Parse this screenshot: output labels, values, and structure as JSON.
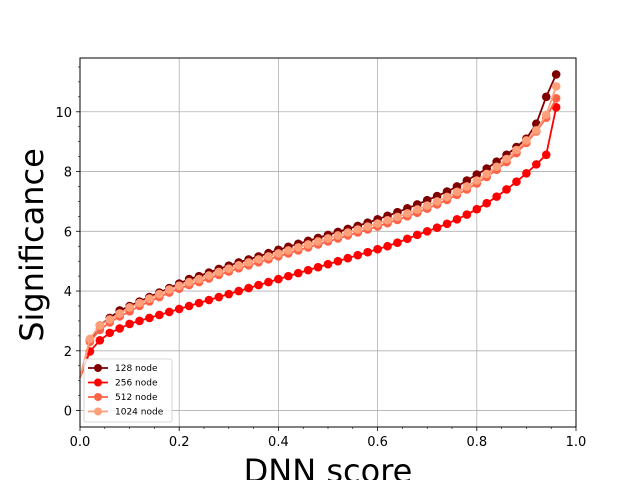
{
  "chart_data": {
    "type": "line",
    "title": "",
    "xlabel": "DNN score",
    "ylabel": "Significance",
    "xlim": [
      0.0,
      1.0
    ],
    "ylim": [
      -0.55,
      11.8
    ],
    "xticks": [
      "0.0",
      "0.2",
      "0.4",
      "0.6",
      "0.8",
      "1.0"
    ],
    "yticks": [
      "0",
      "2",
      "4",
      "6",
      "8",
      "10"
    ],
    "grid": true,
    "legend_position": "lower-left",
    "x": [
      0.0,
      0.02,
      0.04,
      0.06,
      0.08,
      0.1,
      0.12,
      0.14,
      0.16,
      0.18,
      0.2,
      0.22,
      0.24,
      0.26,
      0.28,
      0.3,
      0.32,
      0.34,
      0.36,
      0.38,
      0.4,
      0.42,
      0.44,
      0.46,
      0.48,
      0.5,
      0.52,
      0.54,
      0.56,
      0.58,
      0.6,
      0.62,
      0.64,
      0.66,
      0.68,
      0.7,
      0.72,
      0.74,
      0.76,
      0.78,
      0.8,
      0.82,
      0.84,
      0.86,
      0.88,
      0.9,
      0.92,
      0.94,
      0.96
    ],
    "series": [
      {
        "name": "128 node",
        "color": "#800000",
        "values": [
          1.1,
          2.35,
          2.85,
          3.1,
          3.35,
          3.5,
          3.65,
          3.8,
          3.95,
          4.1,
          4.25,
          4.4,
          4.5,
          4.62,
          4.74,
          4.85,
          4.96,
          5.06,
          5.16,
          5.27,
          5.38,
          5.48,
          5.58,
          5.68,
          5.78,
          5.88,
          5.98,
          6.08,
          6.18,
          6.29,
          6.4,
          6.52,
          6.64,
          6.77,
          6.9,
          7.04,
          7.18,
          7.33,
          7.5,
          7.7,
          7.9,
          8.1,
          8.33,
          8.56,
          8.82,
          9.1,
          9.6,
          10.5,
          11.25
        ]
      },
      {
        "name": "256 node",
        "color": "#ff0000",
        "values": [
          1.1,
          1.98,
          2.35,
          2.6,
          2.75,
          2.9,
          3.0,
          3.1,
          3.2,
          3.3,
          3.4,
          3.5,
          3.6,
          3.7,
          3.8,
          3.9,
          4.0,
          4.1,
          4.2,
          4.3,
          4.4,
          4.5,
          4.6,
          4.7,
          4.8,
          4.9,
          5.0,
          5.1,
          5.2,
          5.3,
          5.4,
          5.5,
          5.62,
          5.75,
          5.88,
          6.0,
          6.12,
          6.25,
          6.4,
          6.56,
          6.74,
          6.94,
          7.16,
          7.4,
          7.66,
          7.94,
          8.24,
          8.56,
          10.15
        ]
      },
      {
        "name": "512 node",
        "color": "#ff6347",
        "values": [
          1.1,
          2.3,
          2.7,
          2.95,
          3.15,
          3.32,
          3.5,
          3.65,
          3.8,
          3.95,
          4.08,
          4.2,
          4.3,
          4.42,
          4.54,
          4.65,
          4.76,
          4.86,
          4.96,
          5.06,
          5.16,
          5.26,
          5.36,
          5.46,
          5.56,
          5.66,
          5.76,
          5.86,
          5.96,
          6.06,
          6.16,
          6.27,
          6.38,
          6.5,
          6.62,
          6.76,
          6.9,
          7.05,
          7.22,
          7.4,
          7.6,
          7.82,
          8.06,
          8.32,
          8.62,
          8.96,
          9.34,
          9.8,
          10.45
        ]
      },
      {
        "name": "1024 node",
        "color": "#ffa07a",
        "values": [
          1.1,
          2.4,
          2.85,
          3.05,
          3.25,
          3.45,
          3.6,
          3.75,
          3.9,
          4.05,
          4.18,
          4.3,
          4.4,
          4.52,
          4.64,
          4.75,
          4.86,
          4.96,
          5.06,
          5.16,
          5.26,
          5.36,
          5.46,
          5.56,
          5.66,
          5.76,
          5.86,
          5.96,
          6.06,
          6.16,
          6.26,
          6.37,
          6.48,
          6.6,
          6.73,
          6.86,
          7.0,
          7.15,
          7.32,
          7.5,
          7.7,
          7.92,
          8.16,
          8.42,
          8.72,
          9.04,
          9.38,
          9.9,
          10.85
        ]
      }
    ]
  }
}
